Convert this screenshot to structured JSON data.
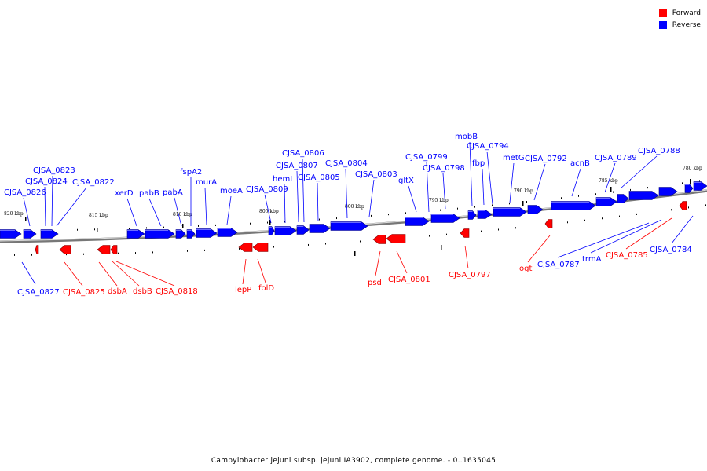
{
  "colors": {
    "forward": "#ff0000",
    "reverse": "#0000ff",
    "backbone": "#888888"
  },
  "legend": {
    "forward_label": "Forward",
    "reverse_label": "Reverse"
  },
  "caption": "Campylobacter jejuni subsp. jejuni IA3902, complete genome. - 0..1635045",
  "scale_ticks": [
    "820 kbp",
    "815 kbp",
    "810 kbp",
    "805 kbp",
    "800 kbp",
    "795 kbp",
    "790 kbp",
    "785 kbp",
    "780 kbp"
  ],
  "reverse_genes": [
    {
      "name": "CJSA_0826"
    },
    {
      "name": "CJSA_0824"
    },
    {
      "name": "CJSA_0823"
    },
    {
      "name": "CJSA_0822"
    },
    {
      "name": "xerD"
    },
    {
      "name": "pabB"
    },
    {
      "name": "pabA"
    },
    {
      "name": "fspA2"
    },
    {
      "name": "murA"
    },
    {
      "name": "moeA"
    },
    {
      "name": "CJSA_0809"
    },
    {
      "name": "hemL"
    },
    {
      "name": "CJSA_0807"
    },
    {
      "name": "CJSA_0806"
    },
    {
      "name": "CJSA_0805"
    },
    {
      "name": "CJSA_0804"
    },
    {
      "name": "CJSA_0803"
    },
    {
      "name": "gltX"
    },
    {
      "name": "CJSA_0799"
    },
    {
      "name": "CJSA_0798"
    },
    {
      "name": "mobB"
    },
    {
      "name": "fbp"
    },
    {
      "name": "CJSA_0794"
    },
    {
      "name": "metG"
    },
    {
      "name": "CJSA_0792"
    },
    {
      "name": "acnB"
    },
    {
      "name": "CJSA_0789"
    },
    {
      "name": "CJSA_0788"
    },
    {
      "name": "CJSA_0827"
    },
    {
      "name": "CJSA_0787"
    },
    {
      "name": "trmA"
    },
    {
      "name": "CJSA_0784"
    }
  ],
  "forward_genes": [
    {
      "name": "CJSA_0825"
    },
    {
      "name": "dsbA"
    },
    {
      "name": "dsbB"
    },
    {
      "name": "CJSA_0818"
    },
    {
      "name": "lepP"
    },
    {
      "name": "folD"
    },
    {
      "name": "psd"
    },
    {
      "name": "CJSA_0801"
    },
    {
      "name": "CJSA_0797"
    },
    {
      "name": "ogt"
    },
    {
      "name": "CJSA_0785"
    }
  ]
}
